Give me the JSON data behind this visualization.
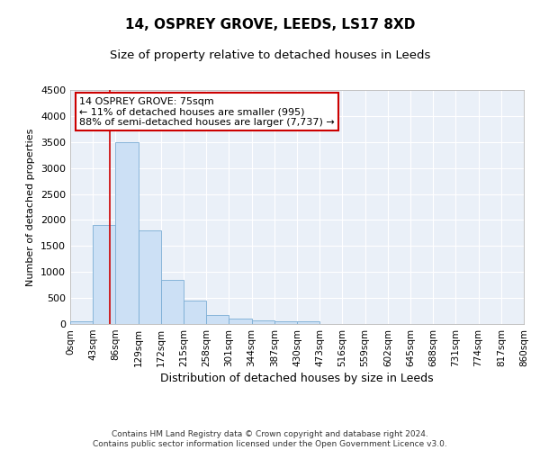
{
  "title": "14, OSPREY GROVE, LEEDS, LS17 8XD",
  "subtitle": "Size of property relative to detached houses in Leeds",
  "xlabel": "Distribution of detached houses by size in Leeds",
  "ylabel": "Number of detached properties",
  "bar_color": "#cce0f5",
  "bar_edge_color": "#7aadd4",
  "marker_color": "#cc0000",
  "property_size": 75,
  "annotation_line1": "14 OSPREY GROVE: 75sqm",
  "annotation_line2": "← 11% of detached houses are smaller (995)",
  "annotation_line3": "88% of semi-detached houses are larger (7,737) →",
  "bin_edges": [
    0,
    43,
    86,
    129,
    172,
    215,
    258,
    301,
    344,
    387,
    430,
    473,
    516,
    559,
    602,
    645,
    688,
    731,
    774,
    817,
    860
  ],
  "bin_labels": [
    "0sqm",
    "43sqm",
    "86sqm",
    "129sqm",
    "172sqm",
    "215sqm",
    "258sqm",
    "301sqm",
    "344sqm",
    "387sqm",
    "430sqm",
    "473sqm",
    "516sqm",
    "559sqm",
    "602sqm",
    "645sqm",
    "688sqm",
    "731sqm",
    "774sqm",
    "817sqm",
    "860sqm"
  ],
  "bar_heights": [
    50,
    1900,
    3500,
    1800,
    850,
    450,
    175,
    100,
    70,
    60,
    50,
    0,
    0,
    0,
    0,
    0,
    0,
    0,
    0,
    0
  ],
  "ylim": [
    0,
    4500
  ],
  "yticks": [
    0,
    500,
    1000,
    1500,
    2000,
    2500,
    3000,
    3500,
    4000,
    4500
  ],
  "footer_line1": "Contains HM Land Registry data © Crown copyright and database right 2024.",
  "footer_line2": "Contains public sector information licensed under the Open Government Licence v3.0.",
  "background_color": "#ffffff",
  "plot_bg_color": "#eaf0f8"
}
